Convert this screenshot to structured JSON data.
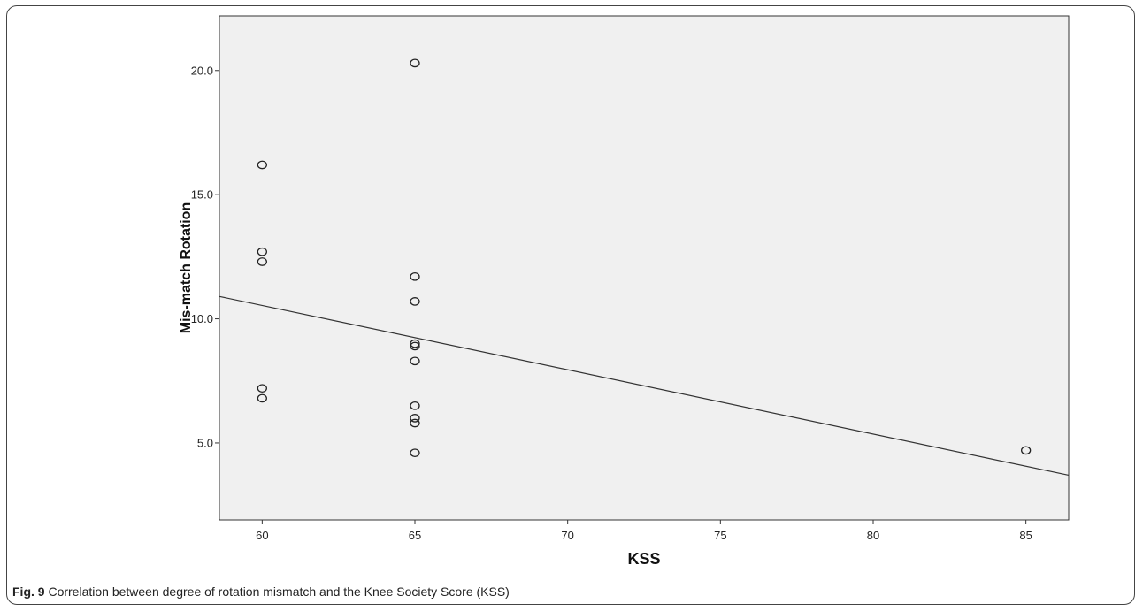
{
  "chart_data": {
    "type": "scatter",
    "title": "",
    "xlabel": "KSS",
    "ylabel": "Mis-match Rotation",
    "xlim": [
      58.6,
      86.4
    ],
    "ylim": [
      1.9,
      22.2
    ],
    "xticks": [
      60,
      65,
      70,
      75,
      80,
      85
    ],
    "yticks": [
      5.0,
      10.0,
      15.0,
      20.0
    ],
    "xtick_labels": [
      "60",
      "65",
      "70",
      "75",
      "80",
      "85"
    ],
    "ytick_labels": [
      "5.0",
      "10.0",
      "15.0",
      "20.0"
    ],
    "grid": false,
    "plot_background": "#f0f0f0",
    "marker": "hollow-circle",
    "points": [
      {
        "x": 60,
        "y": 16.2
      },
      {
        "x": 60,
        "y": 12.7
      },
      {
        "x": 60,
        "y": 12.3
      },
      {
        "x": 60,
        "y": 7.2
      },
      {
        "x": 60,
        "y": 6.8
      },
      {
        "x": 65,
        "y": 20.3
      },
      {
        "x": 65,
        "y": 11.7
      },
      {
        "x": 65,
        "y": 10.7
      },
      {
        "x": 65,
        "y": 9.0
      },
      {
        "x": 65,
        "y": 8.9
      },
      {
        "x": 65,
        "y": 8.3
      },
      {
        "x": 65,
        "y": 6.5
      },
      {
        "x": 65,
        "y": 6.0
      },
      {
        "x": 65,
        "y": 5.8
      },
      {
        "x": 65,
        "y": 4.6
      },
      {
        "x": 85,
        "y": 4.7
      }
    ],
    "fit_line": {
      "x": [
        58.6,
        86.4
      ],
      "y": [
        10.9,
        3.7
      ]
    }
  },
  "caption": {
    "label": "Fig. 9",
    "text": " Correlation between degree of rotation mismatch and the Knee Society Score (KSS)"
  }
}
